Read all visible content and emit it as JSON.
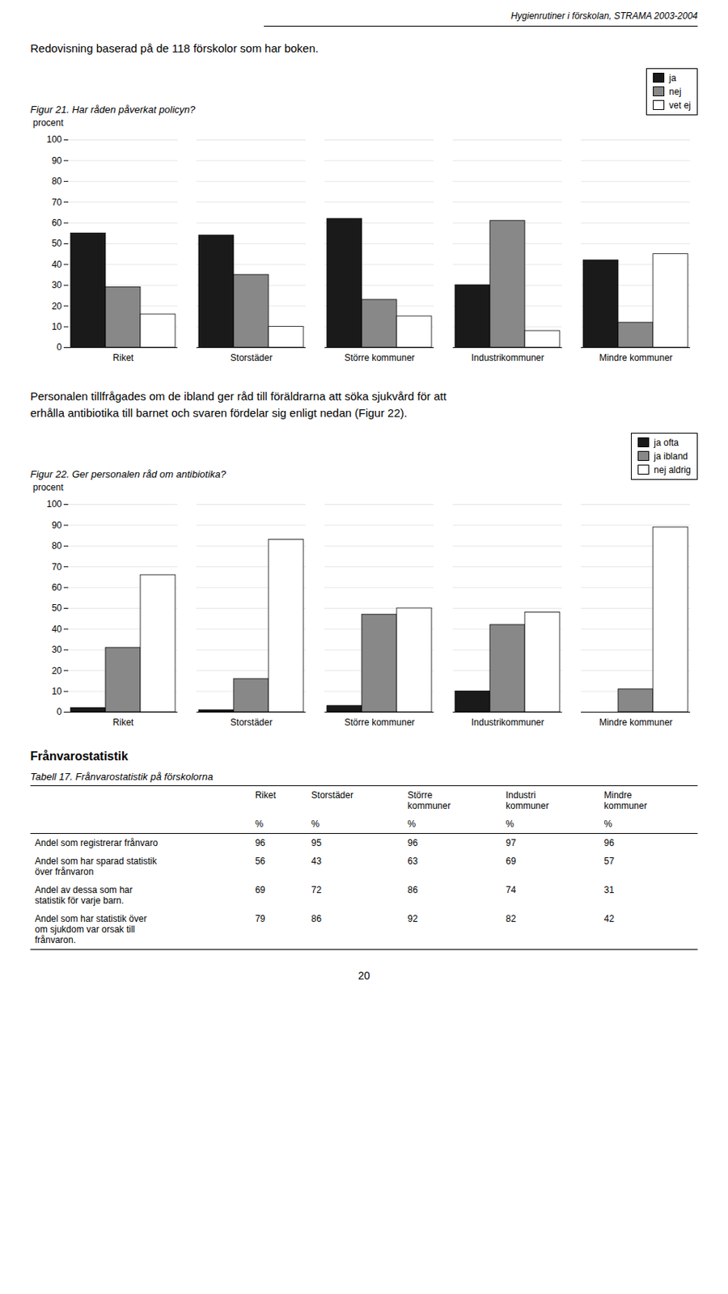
{
  "page_header": "Hygienrutiner i förskolan, STRAMA 2003-2004",
  "intro_text": "Redovisning baserad på de 118 förskolor som har boken.",
  "chart_data": [
    {
      "type": "bar",
      "title": "Figur 21.  Har råden påverkat policyn?",
      "ylabel": "procent",
      "categories": [
        "Riket",
        "Storstäder",
        "Större kommuner",
        "Industrikommuner",
        "Mindre kommuner"
      ],
      "series": [
        {
          "name": "ja",
          "color": "#1a1a1a",
          "values": [
            55,
            54,
            62,
            30,
            42
          ]
        },
        {
          "name": "nej",
          "color": "#888888",
          "values": [
            29,
            35,
            23,
            61,
            12
          ]
        },
        {
          "name": "vet ej",
          "color": "#ffffff",
          "values": [
            16,
            10,
            15,
            8,
            45
          ]
        }
      ],
      "ylim": [
        0,
        100
      ],
      "yticks": [
        0,
        10,
        20,
        30,
        40,
        50,
        60,
        70,
        80,
        90,
        100
      ],
      "grid": true,
      "legend": "upper right"
    },
    {
      "type": "bar",
      "title": "Figur 22.  Ger personalen råd om antibiotika?",
      "ylabel": "procent",
      "categories": [
        "Riket",
        "Storstäder",
        "Större kommuner",
        "Industrikommuner",
        "Mindre kommuner"
      ],
      "series": [
        {
          "name": "ja ofta",
          "color": "#1a1a1a",
          "values": [
            2,
            1,
            3,
            10,
            0
          ]
        },
        {
          "name": "ja ibland",
          "color": "#888888",
          "values": [
            31,
            16,
            47,
            42,
            11
          ]
        },
        {
          "name": "nej aldrig",
          "color": "#ffffff",
          "values": [
            66,
            83,
            50,
            48,
            89
          ]
        }
      ],
      "ylim": [
        0,
        100
      ],
      "yticks": [
        0,
        10,
        20,
        30,
        40,
        50,
        60,
        70,
        80,
        90,
        100
      ],
      "grid": true,
      "legend": "upper right"
    }
  ],
  "paragraph_text": "Personalen tillfrågades om de ibland ger råd till föräldrarna att söka sjukvård för att\nerhålla antibiotika till barnet och svaren fördelar sig enligt nedan (Figur 22).",
  "section_title": "Frånvarostatistik",
  "table": {
    "title": "Tabell 17.  Frånvarostatistik på förskolorna",
    "columns": [
      "Riket",
      "Storstäder",
      "Större\nkommuner",
      "Industri\nkommuner",
      "Mindre\nkommuner"
    ],
    "unit": "%",
    "rows": [
      {
        "label": "Andel som registrerar frånvaro",
        "values": [
          96,
          95,
          96,
          97,
          96
        ]
      },
      {
        "label": "Andel som har sparad statistik\növer frånvaron",
        "values": [
          56,
          43,
          63,
          69,
          57
        ]
      },
      {
        "label": "Andel av dessa som har\nstatistik för varje barn.",
        "values": [
          69,
          72,
          86,
          74,
          31
        ]
      },
      {
        "label": "Andel som har statistik över\nom sjukdom var orsak till\nfrånvaron.",
        "values": [
          79,
          86,
          92,
          82,
          42
        ]
      }
    ]
  },
  "page_number": "20"
}
